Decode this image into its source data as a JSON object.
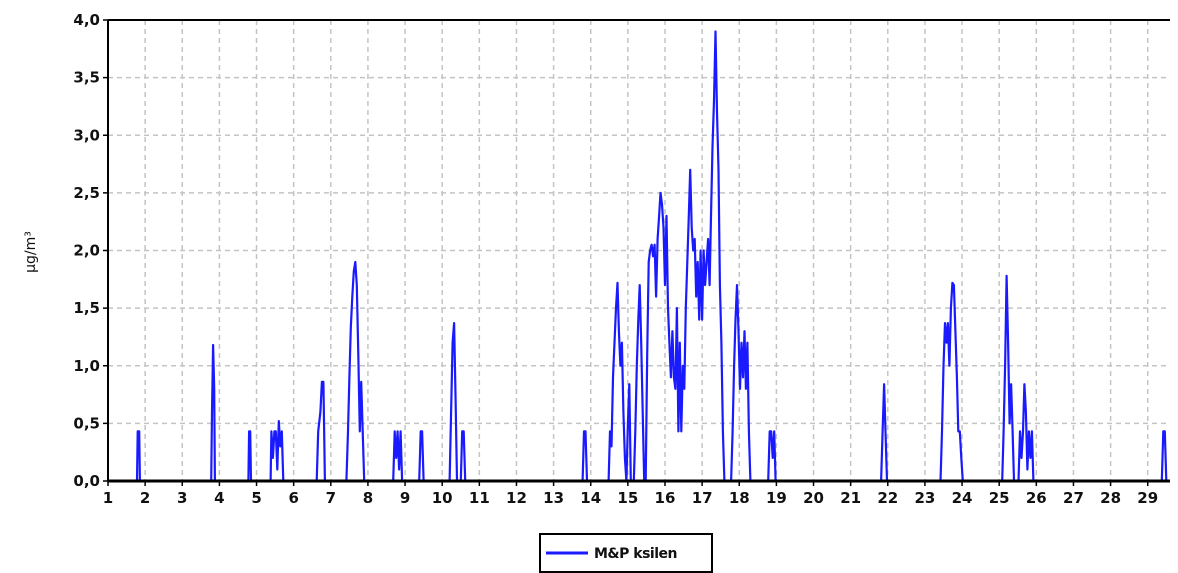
{
  "chart_data": {
    "type": "line",
    "title": "",
    "xlabel": "",
    "ylabel": "µg/m³",
    "xlim": [
      1,
      29.6
    ],
    "ylim": [
      0,
      4.0
    ],
    "grid": true,
    "legend_position": "bottom-center",
    "x_ticks": [
      "1",
      "2",
      "3",
      "4",
      "5",
      "6",
      "7",
      "8",
      "9",
      "10",
      "11",
      "12",
      "13",
      "14",
      "15",
      "16",
      "17",
      "18",
      "19",
      "20",
      "21",
      "22",
      "23",
      "24",
      "25",
      "26",
      "27",
      "28",
      "29"
    ],
    "y_ticks": [
      "0,0",
      "0,5",
      "1,0",
      "1,5",
      "2,0",
      "2,5",
      "3,0",
      "3,5",
      "4,0"
    ],
    "series": [
      {
        "name": "M&P ksilen",
        "color": "#1a1aff",
        "points": [
          [
            1.0,
            0
          ],
          [
            1.78,
            0
          ],
          [
            1.8,
            0.43
          ],
          [
            1.84,
            0.43
          ],
          [
            1.86,
            0
          ],
          [
            3.78,
            0
          ],
          [
            3.8,
            0.6
          ],
          [
            3.83,
            1.18
          ],
          [
            3.86,
            0.8
          ],
          [
            3.88,
            0
          ],
          [
            4.78,
            0
          ],
          [
            4.8,
            0.43
          ],
          [
            4.83,
            0.43
          ],
          [
            4.85,
            0
          ],
          [
            5.38,
            0
          ],
          [
            5.4,
            0.43
          ],
          [
            5.44,
            0.2
          ],
          [
            5.48,
            0.43
          ],
          [
            5.52,
            0.43
          ],
          [
            5.56,
            0.1
          ],
          [
            5.6,
            0.52
          ],
          [
            5.64,
            0.3
          ],
          [
            5.68,
            0.43
          ],
          [
            5.72,
            0
          ],
          [
            6.62,
            0
          ],
          [
            6.66,
            0.43
          ],
          [
            6.72,
            0.6
          ],
          [
            6.76,
            0.86
          ],
          [
            6.8,
            0.86
          ],
          [
            6.84,
            0
          ],
          [
            7.42,
            0
          ],
          [
            7.46,
            0.4
          ],
          [
            7.5,
            0.9
          ],
          [
            7.54,
            1.33
          ],
          [
            7.58,
            1.6
          ],
          [
            7.62,
            1.82
          ],
          [
            7.66,
            1.9
          ],
          [
            7.7,
            1.7
          ],
          [
            7.74,
            1.1
          ],
          [
            7.78,
            0.43
          ],
          [
            7.82,
            0.86
          ],
          [
            7.86,
            0.43
          ],
          [
            7.9,
            0
          ],
          [
            8.68,
            0
          ],
          [
            8.72,
            0.43
          ],
          [
            8.76,
            0.2
          ],
          [
            8.8,
            0.43
          ],
          [
            8.84,
            0.1
          ],
          [
            8.88,
            0.43
          ],
          [
            8.92,
            0
          ],
          [
            9.38,
            0
          ],
          [
            9.42,
            0.43
          ],
          [
            9.46,
            0.43
          ],
          [
            9.5,
            0
          ],
          [
            10.2,
            0
          ],
          [
            10.24,
            0.6
          ],
          [
            10.28,
            1.2
          ],
          [
            10.32,
            1.37
          ],
          [
            10.36,
            0.7
          ],
          [
            10.4,
            0
          ],
          [
            10.5,
            0
          ],
          [
            10.54,
            0.43
          ],
          [
            10.58,
            0.43
          ],
          [
            10.62,
            0
          ],
          [
            13.78,
            0
          ],
          [
            13.82,
            0.43
          ],
          [
            13.86,
            0.43
          ],
          [
            13.9,
            0
          ],
          [
            14.48,
            0
          ],
          [
            14.52,
            0.43
          ],
          [
            14.56,
            0.3
          ],
          [
            14.6,
            0.9
          ],
          [
            14.64,
            1.2
          ],
          [
            14.68,
            1.5
          ],
          [
            14.72,
            1.72
          ],
          [
            14.76,
            1.3
          ],
          [
            14.8,
            1.0
          ],
          [
            14.84,
            1.2
          ],
          [
            14.88,
            0.6
          ],
          [
            14.92,
            0.2
          ],
          [
            14.96,
            0
          ],
          [
            15.0,
            0.5
          ],
          [
            15.04,
            0.84
          ],
          [
            15.08,
            0
          ],
          [
            15.16,
            0
          ],
          [
            15.2,
            0.43
          ],
          [
            15.24,
            1.0
          ],
          [
            15.28,
            1.4
          ],
          [
            15.32,
            1.7
          ],
          [
            15.36,
            1.2
          ],
          [
            15.4,
            0.6
          ],
          [
            15.44,
            0
          ],
          [
            15.48,
            0
          ],
          [
            15.52,
            1.1
          ],
          [
            15.56,
            1.9
          ],
          [
            15.6,
            2.0
          ],
          [
            15.64,
            2.05
          ],
          [
            15.68,
            1.95
          ],
          [
            15.72,
            2.05
          ],
          [
            15.76,
            1.6
          ],
          [
            15.8,
            2.1
          ],
          [
            15.84,
            2.3
          ],
          [
            15.88,
            2.5
          ],
          [
            15.92,
            2.4
          ],
          [
            15.96,
            2.2
          ],
          [
            16.0,
            1.7
          ],
          [
            16.04,
            2.3
          ],
          [
            16.08,
            1.5
          ],
          [
            16.12,
            1.2
          ],
          [
            16.16,
            0.9
          ],
          [
            16.2,
            1.3
          ],
          [
            16.24,
            0.9
          ],
          [
            16.28,
            0.8
          ],
          [
            16.32,
            1.5
          ],
          [
            16.36,
            0.43
          ],
          [
            16.4,
            1.2
          ],
          [
            16.44,
            0.43
          ],
          [
            16.48,
            1.0
          ],
          [
            16.52,
            0.8
          ],
          [
            16.56,
            1.5
          ],
          [
            16.6,
            1.9
          ],
          [
            16.64,
            2.3
          ],
          [
            16.68,
            2.7
          ],
          [
            16.72,
            2.2
          ],
          [
            16.76,
            2.0
          ],
          [
            16.8,
            2.1
          ],
          [
            16.84,
            1.6
          ],
          [
            16.88,
            1.9
          ],
          [
            16.92,
            1.4
          ],
          [
            16.96,
            2.0
          ],
          [
            17.0,
            1.4
          ],
          [
            17.04,
            2.0
          ],
          [
            17.08,
            1.7
          ],
          [
            17.12,
            1.9
          ],
          [
            17.16,
            2.1
          ],
          [
            17.2,
            1.7
          ],
          [
            17.24,
            2.3
          ],
          [
            17.28,
            2.9
          ],
          [
            17.32,
            3.3
          ],
          [
            17.36,
            3.9
          ],
          [
            17.4,
            3.2
          ],
          [
            17.44,
            2.7
          ],
          [
            17.48,
            1.7
          ],
          [
            17.52,
            1.2
          ],
          [
            17.56,
            0.43
          ],
          [
            17.6,
            0
          ],
          [
            17.78,
            0
          ],
          [
            17.82,
            0.43
          ],
          [
            17.86,
            1.0
          ],
          [
            17.9,
            1.4
          ],
          [
            17.94,
            1.7
          ],
          [
            17.98,
            1.3
          ],
          [
            18.02,
            0.8
          ],
          [
            18.06,
            1.2
          ],
          [
            18.1,
            0.9
          ],
          [
            18.14,
            1.3
          ],
          [
            18.18,
            0.8
          ],
          [
            18.22,
            1.2
          ],
          [
            18.26,
            0.43
          ],
          [
            18.3,
            0
          ],
          [
            18.78,
            0
          ],
          [
            18.82,
            0.43
          ],
          [
            18.86,
            0.43
          ],
          [
            18.9,
            0.2
          ],
          [
            18.94,
            0.43
          ],
          [
            18.98,
            0
          ],
          [
            21.82,
            0
          ],
          [
            21.86,
            0.43
          ],
          [
            21.9,
            0.84
          ],
          [
            21.94,
            0.4
          ],
          [
            21.98,
            0
          ],
          [
            23.42,
            0
          ],
          [
            23.46,
            0.43
          ],
          [
            23.5,
            1.0
          ],
          [
            23.54,
            1.37
          ],
          [
            23.58,
            1.2
          ],
          [
            23.62,
            1.37
          ],
          [
            23.66,
            1.0
          ],
          [
            23.7,
            1.5
          ],
          [
            23.74,
            1.72
          ],
          [
            23.78,
            1.7
          ],
          [
            23.82,
            1.3
          ],
          [
            23.86,
            0.9
          ],
          [
            23.9,
            0.43
          ],
          [
            23.94,
            0.43
          ],
          [
            23.98,
            0.2
          ],
          [
            24.02,
            0
          ],
          [
            25.08,
            0
          ],
          [
            25.12,
            0.43
          ],
          [
            25.16,
            1.0
          ],
          [
            25.2,
            1.78
          ],
          [
            25.24,
            1.2
          ],
          [
            25.28,
            0.5
          ],
          [
            25.32,
            0.84
          ],
          [
            25.36,
            0.43
          ],
          [
            25.4,
            0
          ],
          [
            25.52,
            0
          ],
          [
            25.56,
            0.43
          ],
          [
            25.6,
            0.2
          ],
          [
            25.64,
            0.43
          ],
          [
            25.68,
            0.84
          ],
          [
            25.72,
            0.6
          ],
          [
            25.76,
            0.1
          ],
          [
            25.8,
            0.43
          ],
          [
            25.84,
            0.2
          ],
          [
            25.88,
            0.43
          ],
          [
            25.92,
            0
          ],
          [
            29.38,
            0
          ],
          [
            29.42,
            0.43
          ],
          [
            29.46,
            0.43
          ],
          [
            29.5,
            0
          ],
          [
            29.6,
            0
          ]
        ]
      }
    ]
  }
}
